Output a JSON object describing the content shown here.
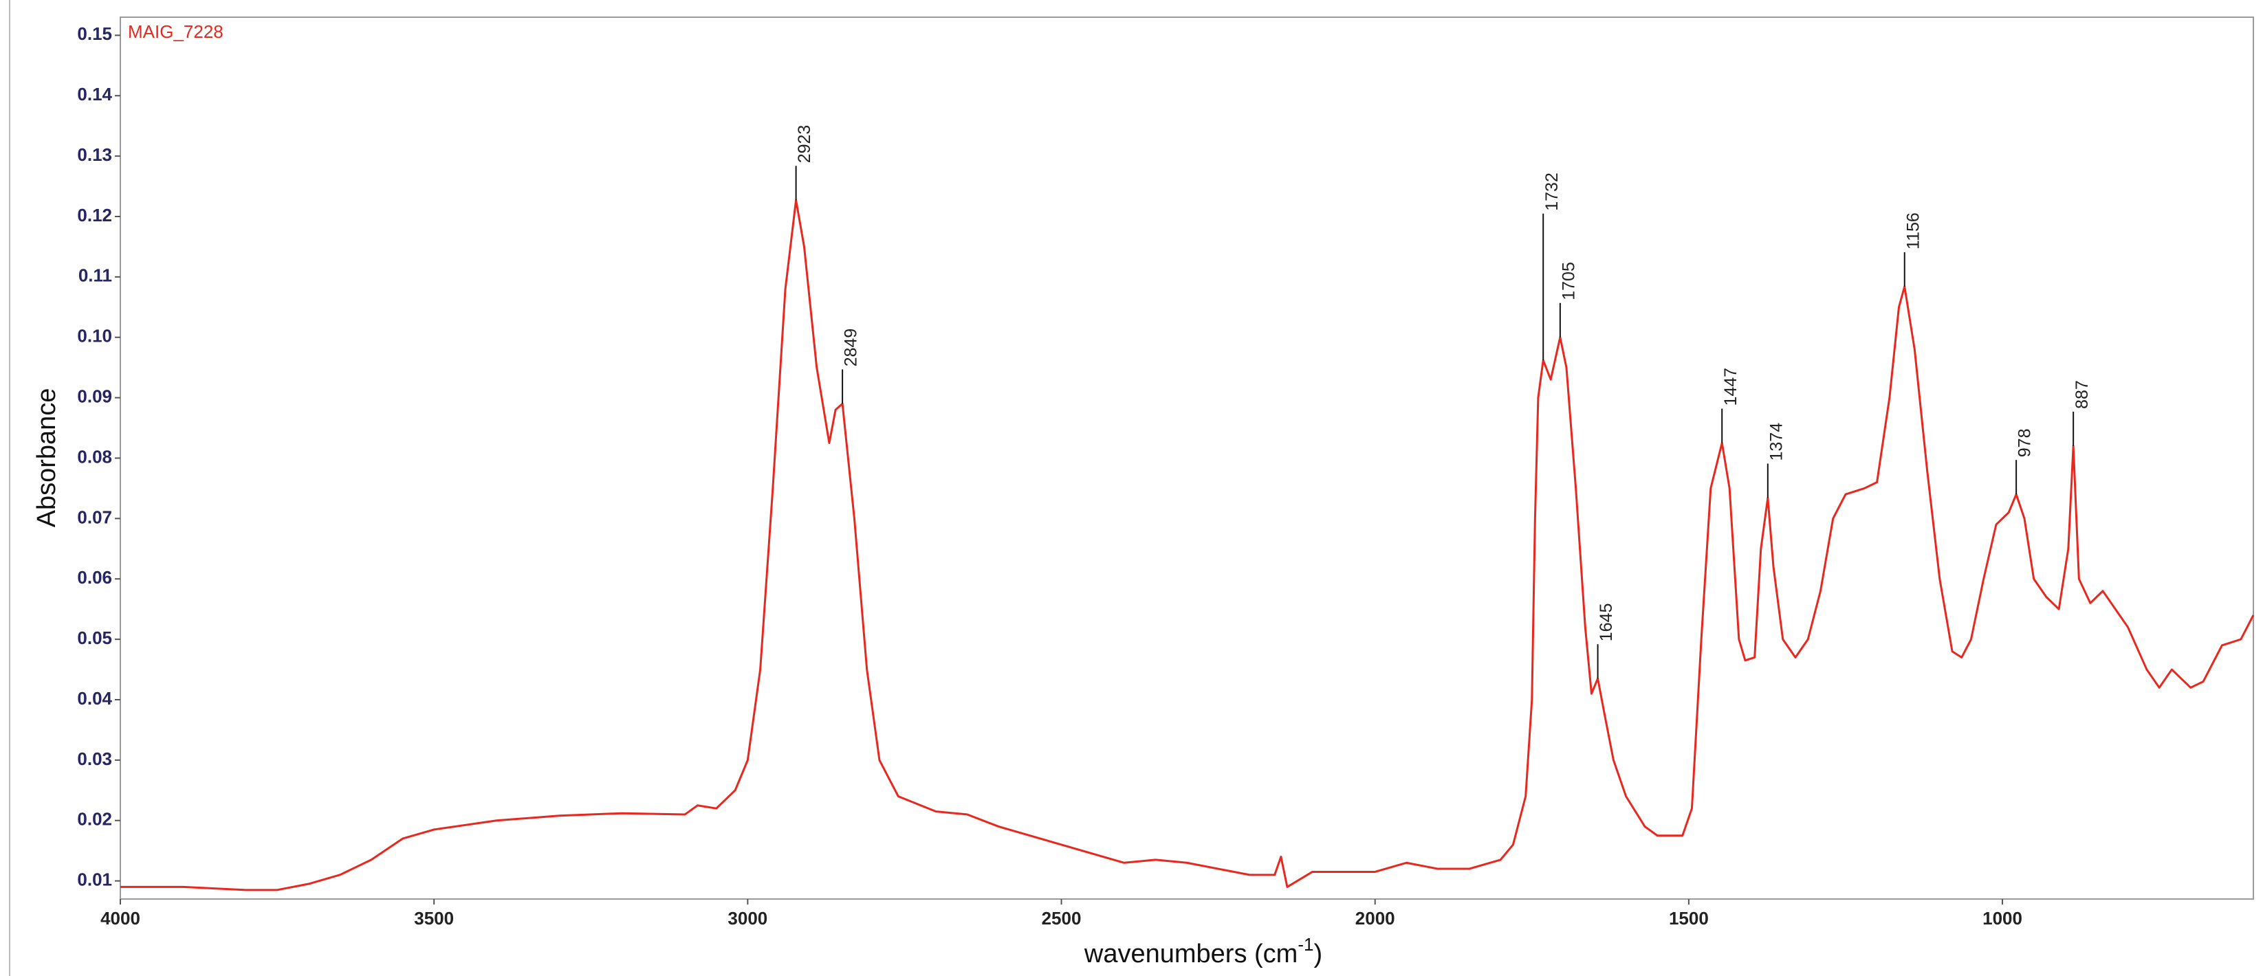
{
  "chart_data": {
    "type": "line",
    "title": "MAIG_7228",
    "x_label": [
      "wavenumbers (cm",
      "-1",
      ")"
    ],
    "y_label": "Absorbance",
    "xlim": [
      4000,
      600
    ],
    "xticks": [
      4000,
      3500,
      3000,
      2500,
      2000,
      1500,
      1000
    ],
    "ylim": [
      0.007,
      0.153
    ],
    "yticks": [
      0.01,
      0.02,
      0.03,
      0.04,
      0.05,
      0.06,
      0.07,
      0.08,
      0.09,
      {
        "value": 0.1,
        "label": "0.10"
      },
      0.11,
      0.12,
      0.13,
      0.14,
      0.15
    ],
    "grid": false,
    "x": [
      4000,
      3900,
      3800,
      3750,
      3700,
      3650,
      3600,
      3550,
      3500,
      3400,
      3300,
      3200,
      3100,
      3080,
      3050,
      3020,
      3000,
      2980,
      2960,
      2940,
      2923,
      2910,
      2890,
      2870,
      2860,
      2849,
      2830,
      2810,
      2790,
      2760,
      2700,
      2650,
      2600,
      2500,
      2400,
      2350,
      2300,
      2200,
      2160,
      2150,
      2140,
      2100,
      2000,
      1950,
      1900,
      1850,
      1800,
      1780,
      1760,
      1750,
      1745,
      1740,
      1732,
      1720,
      1705,
      1695,
      1680,
      1665,
      1655,
      1645,
      1635,
      1620,
      1600,
      1570,
      1550,
      1510,
      1495,
      1480,
      1465,
      1447,
      1435,
      1420,
      1410,
      1395,
      1385,
      1374,
      1365,
      1350,
      1330,
      1310,
      1290,
      1270,
      1250,
      1220,
      1200,
      1180,
      1165,
      1156,
      1140,
      1120,
      1100,
      1080,
      1065,
      1050,
      1030,
      1010,
      990,
      978,
      965,
      950,
      930,
      910,
      895,
      887,
      878,
      860,
      840,
      800,
      770,
      750,
      730,
      700,
      680,
      650,
      620,
      600
    ],
    "series": [
      {
        "name": "MAIG_7228",
        "color": "#e8281e",
        "values": [
          0.009,
          0.009,
          0.0085,
          0.0085,
          0.0095,
          0.011,
          0.0135,
          0.017,
          0.0185,
          0.02,
          0.0208,
          0.0212,
          0.021,
          0.0225,
          0.022,
          0.025,
          0.03,
          0.045,
          0.075,
          0.108,
          0.1227,
          0.115,
          0.095,
          0.0825,
          0.088,
          0.089,
          0.07,
          0.045,
          0.03,
          0.024,
          0.0215,
          0.021,
          0.019,
          0.016,
          0.013,
          0.0135,
          0.013,
          0.011,
          0.011,
          0.014,
          0.009,
          0.0115,
          0.0115,
          0.013,
          0.012,
          0.012,
          0.0135,
          0.016,
          0.024,
          0.04,
          0.07,
          0.09,
          0.0962,
          0.093,
          0.1,
          0.095,
          0.075,
          0.052,
          0.041,
          0.0435,
          0.038,
          0.03,
          0.024,
          0.019,
          0.0175,
          0.0175,
          0.022,
          0.05,
          0.075,
          0.0825,
          0.075,
          0.05,
          0.0465,
          0.047,
          0.065,
          0.0734,
          0.062,
          0.05,
          0.047,
          0.05,
          0.058,
          0.07,
          0.074,
          0.075,
          0.076,
          0.09,
          0.105,
          0.1084,
          0.098,
          0.078,
          0.06,
          0.048,
          0.047,
          0.05,
          0.06,
          0.069,
          0.071,
          0.074,
          0.07,
          0.06,
          0.057,
          0.055,
          0.065,
          0.082,
          0.06,
          0.056,
          0.058,
          0.052,
          0.045,
          0.042,
          0.045,
          0.042,
          0.043,
          0.049,
          0.05,
          0.054
        ]
      }
    ],
    "peaks": [
      {
        "x": 2923,
        "y": 0.1227
      },
      {
        "x": 2849,
        "y": 0.089
      },
      {
        "x": 1732,
        "y": 0.0962
      },
      {
        "x": 1705,
        "y": 0.1
      },
      {
        "x": 1645,
        "y": 0.0435
      },
      {
        "x": 1447,
        "y": 0.0825
      },
      {
        "x": 1374,
        "y": 0.0734
      },
      {
        "x": 1156,
        "y": 0.1084
      },
      {
        "x": 978,
        "y": 0.074
      },
      {
        "x": 887,
        "y": 0.082
      }
    ]
  }
}
